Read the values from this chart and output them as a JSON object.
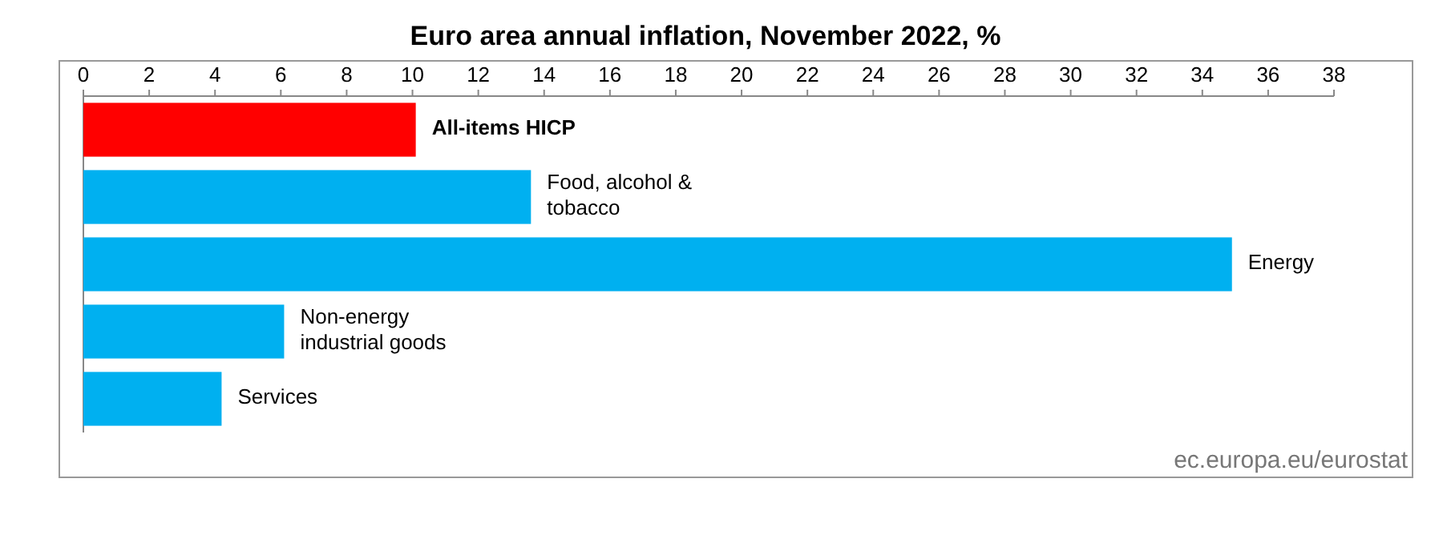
{
  "chart_data": {
    "type": "bar",
    "orientation": "horizontal",
    "title": "Euro area annual inflation, November 2022, %",
    "categories": [
      "All-items HICP",
      "Food, alcohol & tobacco",
      "Energy",
      "Non-energy industrial goods",
      "Services"
    ],
    "values": [
      10.1,
      13.6,
      34.9,
      6.1,
      4.2
    ],
    "colors": [
      "#ff0000",
      "#00b0f0",
      "#00b0f0",
      "#00b0f0",
      "#00b0f0"
    ],
    "xlim": [
      0,
      38
    ],
    "xticks": [
      0,
      2,
      4,
      6,
      8,
      10,
      12,
      14,
      16,
      18,
      20,
      22,
      24,
      26,
      28,
      30,
      32,
      34,
      36,
      38
    ],
    "annotations": [
      "ec.europa.eu/eurostat"
    ]
  }
}
